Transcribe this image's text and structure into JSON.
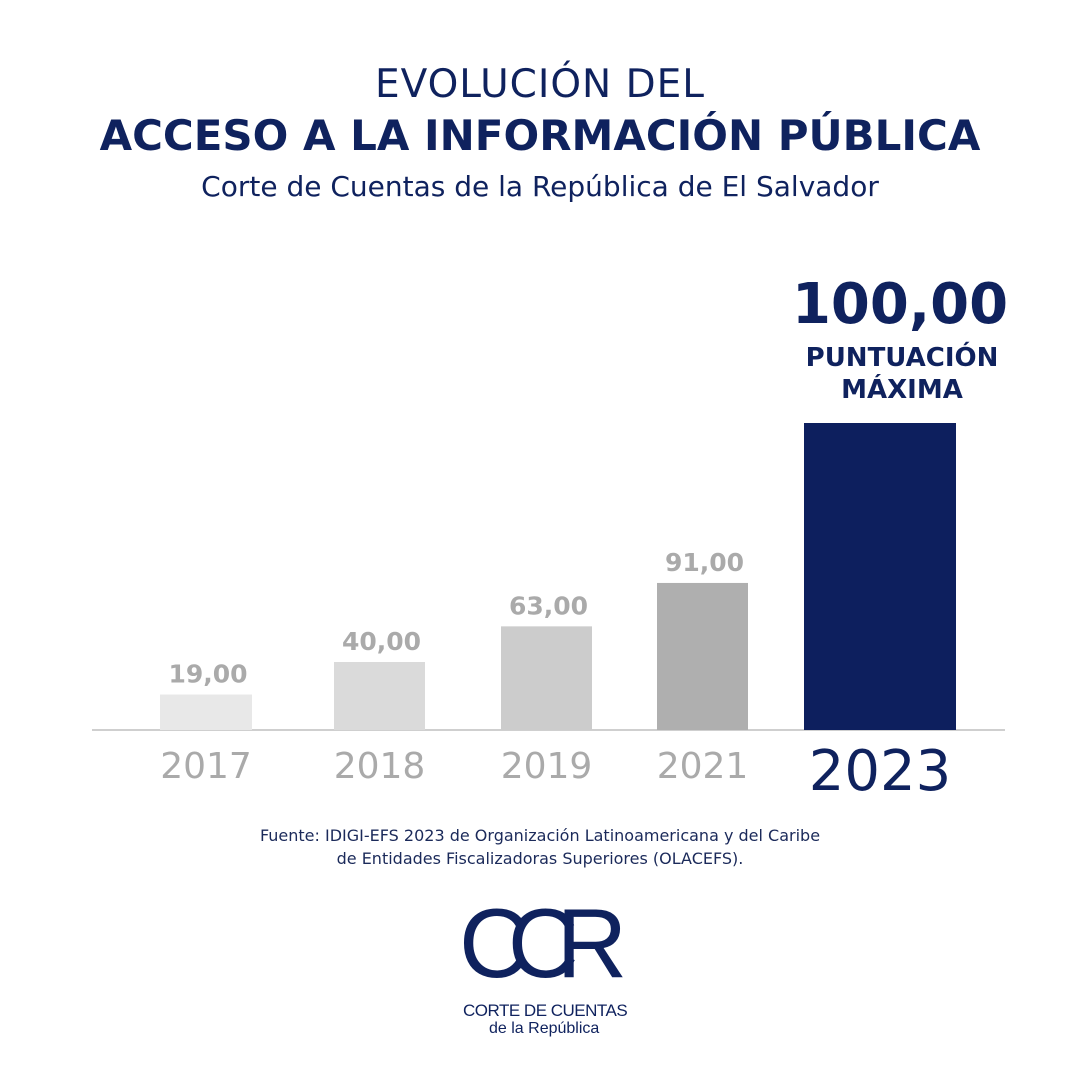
{
  "header": {
    "line1": "EVOLUCIÓN DEL",
    "line2": "ACCESO A LA INFORMACIÓN PÚBLICA",
    "line3": "Corte de Cuentas de la República de El Salvador"
  },
  "chart_data": {
    "type": "bar",
    "title": "EVOLUCIÓN DEL ACCESO A LA INFORMACIÓN PÚBLICA",
    "categories": [
      "2017",
      "2018",
      "2019",
      "2021",
      "2023"
    ],
    "values": [
      19,
      40,
      63,
      91,
      100
    ],
    "value_labels": [
      "19,00",
      "40,00",
      "63,00",
      "91,00",
      "100,00"
    ],
    "highlight_index": 4,
    "highlight_caption": [
      "PUNTUACIÓN",
      "MÁXIMA"
    ],
    "colors": [
      "#e8e8e8",
      "#dadada",
      "#cccccc",
      "#afafaf",
      "#0d1f5e"
    ],
    "label_color": "#aaaaaa",
    "highlight_color": "#0f225e",
    "xlabel": "",
    "ylabel": "",
    "ylim": [
      0,
      100
    ],
    "grid": false
  },
  "source": {
    "line1": "Fuente: IDIGI-EFS 2023 de Organización Latinoamericana y del Caribe",
    "line2": "de Entidades Fiscalizadoras Superiores (OLACEFS)."
  },
  "logo": {
    "mark": "CCR",
    "line1": "CORTE DE CUENTAS",
    "line2": "de la República"
  }
}
